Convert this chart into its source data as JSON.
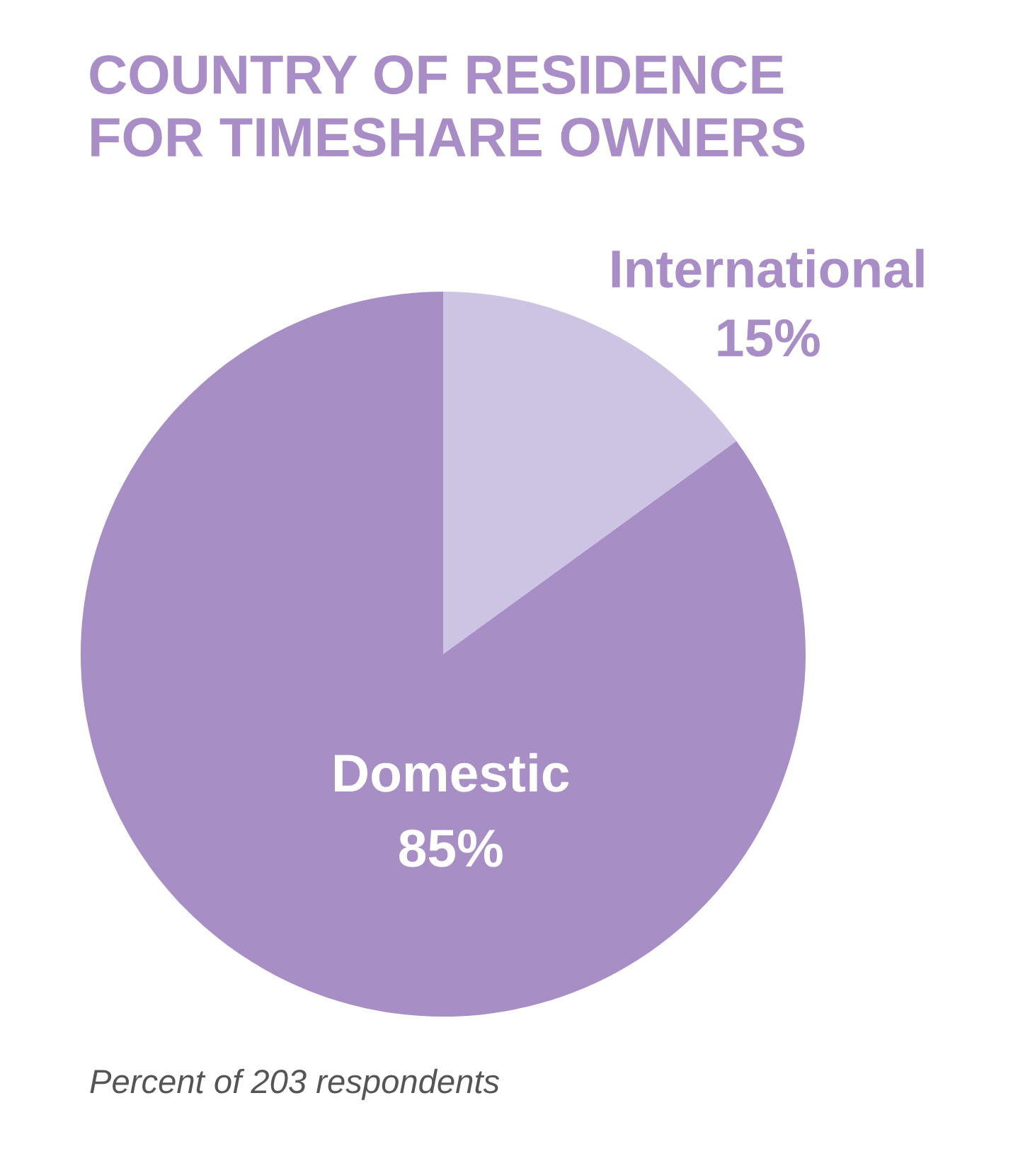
{
  "chart_data": {
    "type": "pie",
    "title": "COUNTRY OF RESIDENCE\nFOR TIMESHARE OWNERS",
    "categories": [
      "International",
      "Domestic"
    ],
    "values": [
      15,
      85
    ],
    "colors": [
      "#cdc3e2",
      "#a78ec4"
    ],
    "value_labels": [
      "15%",
      "85%"
    ],
    "annotations": [
      "Percent of 203 respondents"
    ]
  }
}
